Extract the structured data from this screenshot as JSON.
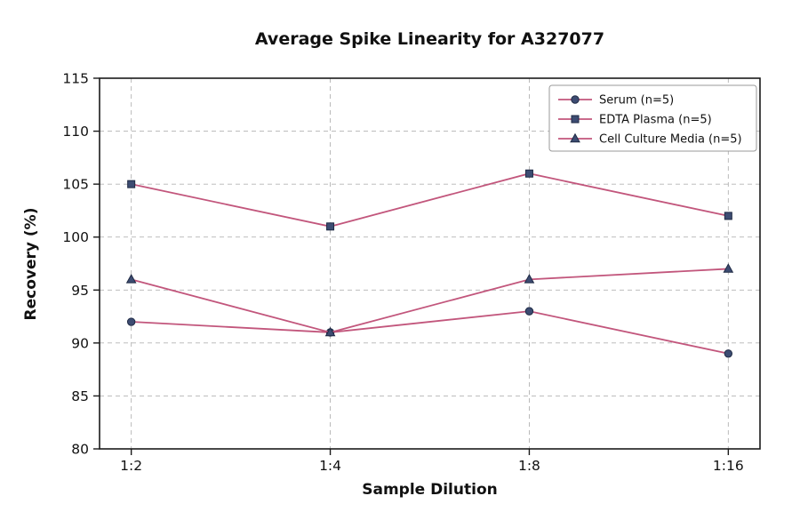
{
  "chart_data": {
    "type": "line",
    "title": "Average Spike Linearity for A327077",
    "xlabel": "Sample Dilution",
    "ylabel": "Recovery (%)",
    "categories": [
      "1:2",
      "1:4",
      "1:8",
      "1:16"
    ],
    "series": [
      {
        "name": "Serum (n=5)",
        "marker": "circle",
        "values": [
          92,
          91,
          93,
          89
        ]
      },
      {
        "name": "EDTA Plasma (n=5)",
        "marker": "square",
        "values": [
          105,
          101,
          106,
          102
        ]
      },
      {
        "name": "Cell Culture Media (n=5)",
        "marker": "triangle",
        "values": [
          96,
          91,
          96,
          97
        ]
      }
    ],
    "ylim": [
      80,
      115
    ],
    "ytick_step": 5,
    "grid": true,
    "grid_style": "dashed",
    "legend_position": "upper right",
    "colors": {
      "line": "#c2567c",
      "marker_fill": "#3d4c72",
      "marker_edge": "#1f2a44",
      "grid": "#b3b3b3",
      "axis": "#1a1a1a",
      "text": "#111111",
      "legend_border": "#9a9a9a"
    }
  }
}
